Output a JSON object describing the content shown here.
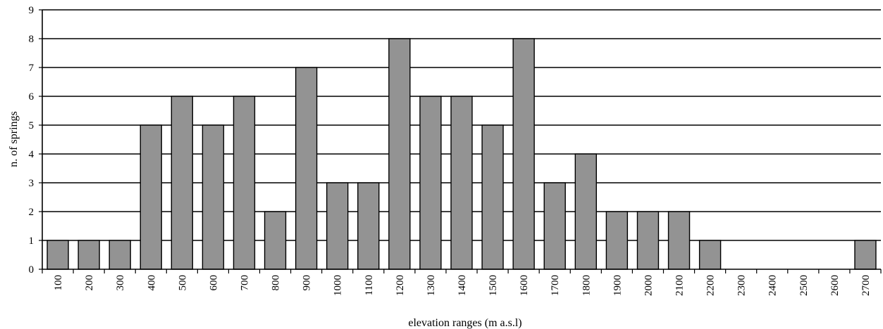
{
  "chart_data": {
    "type": "bar",
    "title": "",
    "xlabel": "elevation ranges (m a.s.l)",
    "ylabel": "n. of springs",
    "categories": [
      "100",
      "200",
      "300",
      "400",
      "500",
      "600",
      "700",
      "800",
      "900",
      "1000",
      "1100",
      "1200",
      "1300",
      "1400",
      "1500",
      "1600",
      "1700",
      "1800",
      "1900",
      "2000",
      "2100",
      "2200",
      "2300",
      "2400",
      "2500",
      "2600",
      "2700"
    ],
    "values": [
      1,
      1,
      1,
      5,
      6,
      5,
      6,
      2,
      7,
      3,
      3,
      8,
      6,
      6,
      5,
      8,
      3,
      4,
      2,
      2,
      2,
      1,
      0,
      0,
      0,
      0,
      1
    ],
    "ylim": [
      0,
      9
    ],
    "yticks": [
      0,
      1,
      2,
      3,
      4,
      5,
      6,
      7,
      8,
      9
    ],
    "grid": true,
    "colors": {
      "bar": "#939393",
      "bar_stroke": "#000000",
      "grid": "#000000"
    }
  }
}
